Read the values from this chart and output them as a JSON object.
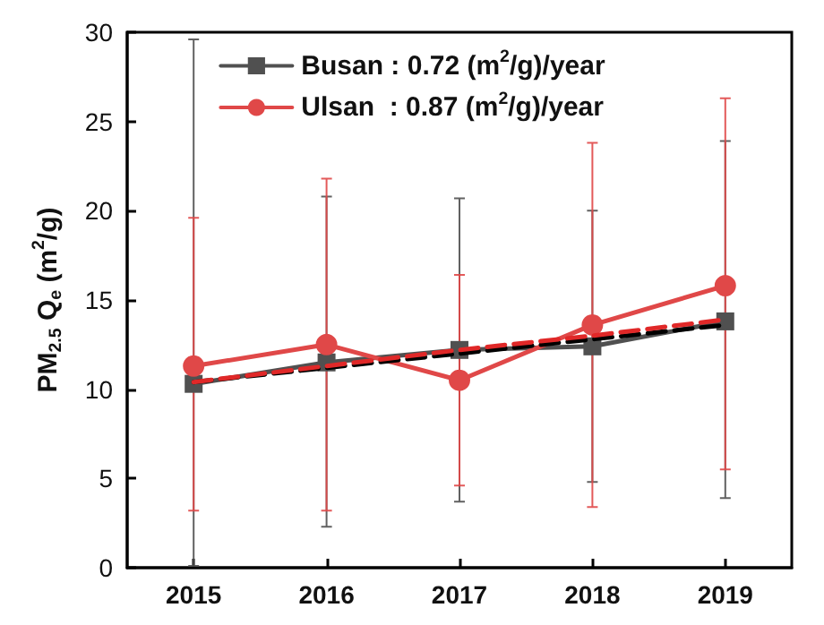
{
  "chart_data": {
    "type": "line",
    "ylabel": "PM$_{2.5}$ Q$_{e}$ (m$^{2}$/g)",
    "x": [
      2015,
      2016,
      2017,
      2018,
      2019
    ],
    "xlim": [
      2014.5,
      2019.5
    ],
    "xticks": [
      2015,
      2016,
      2017,
      2018,
      2019
    ],
    "ylim": [
      0,
      30
    ],
    "yticks": [
      0,
      5,
      10,
      15,
      20,
      25,
      30
    ],
    "grid": false,
    "legend": "top",
    "line_style": "solid",
    "series": [
      {
        "name": "Busan : 0.72 (m$^{2}$/g)/year",
        "color": "#505050",
        "marker": "square",
        "values": [
          10.3,
          11.5,
          12.2,
          12.4,
          13.8
        ],
        "errors": [
          [
            0.1,
            29.6
          ],
          [
            2.3,
            20.8
          ],
          [
            3.7,
            20.7
          ],
          [
            4.8,
            20.0
          ],
          [
            3.9,
            23.9
          ]
        ]
      },
      {
        "name": "Ulsan  : 0.87 (m$^{2}$/g)/year",
        "color": "#e04848",
        "marker": "circle",
        "values": [
          11.3,
          12.5,
          10.5,
          13.6,
          15.8
        ],
        "errors": [
          [
            3.2,
            19.6
          ],
          [
            3.2,
            21.8
          ],
          [
            4.6,
            16.4
          ],
          [
            3.4,
            23.8
          ],
          [
            5.5,
            26.3
          ]
        ]
      },
      {
        "type": "line",
        "color": "#000000",
        "line_style": "dashed",
        "marker": "none",
        "values": [
          10.4,
          11.2,
          12.0,
          12.8,
          13.6
        ]
      },
      {
        "type": "line",
        "color": "#e02828",
        "line_style": "dashed",
        "marker": "none",
        "values": [
          10.4,
          11.3,
          12.2,
          13.0,
          13.9
        ]
      }
    ]
  }
}
